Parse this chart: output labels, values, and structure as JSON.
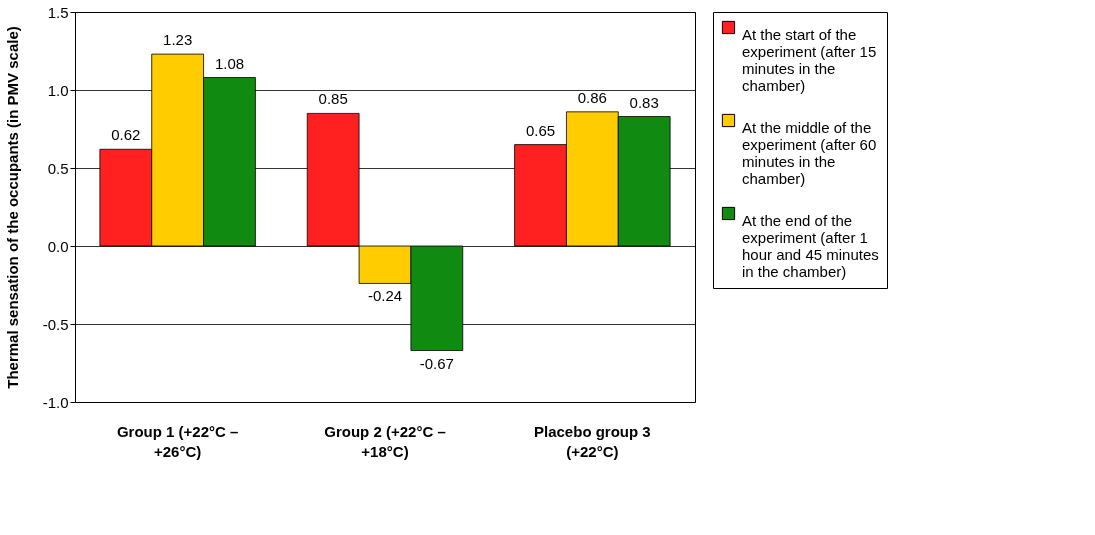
{
  "chart_data": {
    "type": "bar",
    "ylabel": "Thermal sensation of the occupants (in PMV scale)",
    "categories": [
      "Group 1 (+22°C –\n+26°C)",
      "Group 2 (+22°C –\n+18°C)",
      "Placebo group 3\n(+22°C)"
    ],
    "series": [
      {
        "name": "At the start of the\nexperiment (after 15\nminutes in the\nchamber)",
        "color": "#ff2020",
        "values": [
          0.62,
          0.85,
          0.65
        ]
      },
      {
        "name": "At the middle of the\nexperiment (after 60\nminutes in the\nchamber)",
        "color": "#ffcc00",
        "values": [
          1.23,
          -0.24,
          0.86
        ]
      },
      {
        "name": "At the end of the\nexperiment (after 1\nhour and 45 minutes\nin the chamber)",
        "color": "#108a10",
        "values": [
          1.08,
          -0.67,
          0.83
        ]
      }
    ],
    "ylim": [
      -1.0,
      1.5
    ],
    "yticks": [
      {
        "value": -1,
        "label": "-1.0"
      },
      -0.5,
      {
        "value": 0,
        "label": "0.0"
      },
      0.5,
      {
        "value": 1,
        "label": "1.0"
      },
      1.5
    ],
    "grid": "y",
    "legend": "right",
    "data_labels": true
  }
}
